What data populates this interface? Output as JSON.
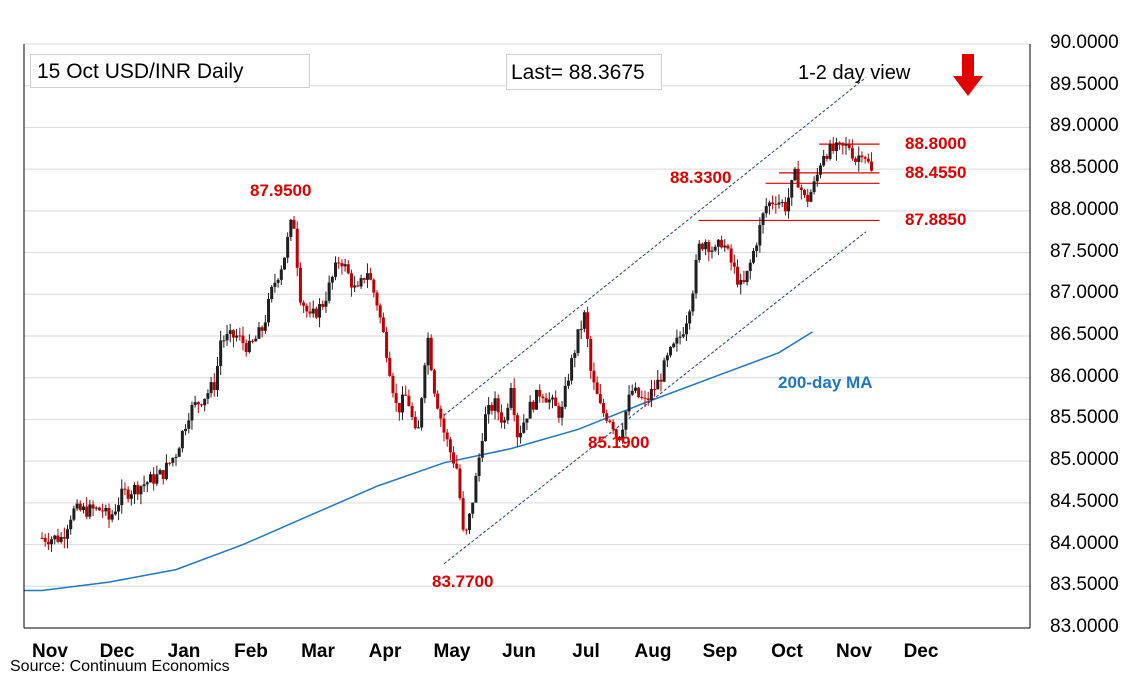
{
  "header": {
    "title": "15 Oct  USD/INR  Daily",
    "last": "Last= 88.3675",
    "view": "1-2 day view",
    "view_arrow": "down-arrow-red"
  },
  "source": "Source: Continuum Economics",
  "colors": {
    "up_candle": "#1f1f1f",
    "down_candle": "#c00000",
    "ma_line": "#1f77c4",
    "level_lines": "#e00000",
    "channel_lines": "#1f3f7f",
    "arrow": "#e00000"
  },
  "chart_data": {
    "type": "candlestick",
    "ylim": [
      83.0,
      90.0
    ],
    "y_ticks": [
      "83.0000",
      "83.5000",
      "84.0000",
      "84.5000",
      "85.0000",
      "85.5000",
      "86.0000",
      "86.5000",
      "87.0000",
      "87.5000",
      "88.0000",
      "88.5000",
      "89.0000",
      "89.5000",
      "90.0000"
    ],
    "x_ticks": [
      "Nov",
      "Dec",
      "Jan",
      "Feb",
      "Mar",
      "Apr",
      "May",
      "Jun",
      "Jul",
      "Aug",
      "Sep",
      "Oct",
      "Nov",
      "Dec"
    ],
    "grid": true,
    "levels": [
      {
        "label": "88.8000",
        "value": 88.8
      },
      {
        "label": "88.4550",
        "value": 88.455
      },
      {
        "label": "88.3300",
        "value": 88.33
      },
      {
        "label": "87.8850",
        "value": 87.885
      }
    ],
    "annotations": [
      {
        "label": "87.9500",
        "value": 87.95
      },
      {
        "label": "85.1900",
        "value": 85.19
      },
      {
        "label": "83.7700",
        "value": 83.77
      }
    ],
    "ma_label": "200-day MA",
    "moving_average_200d": [
      {
        "month": 0.0,
        "value": 83.45
      },
      {
        "month": 1.0,
        "value": 83.55
      },
      {
        "month": 2.0,
        "value": 83.7
      },
      {
        "month": 3.0,
        "value": 84.0
      },
      {
        "month": 4.0,
        "value": 84.35
      },
      {
        "month": 5.0,
        "value": 84.7
      },
      {
        "month": 6.0,
        "value": 84.98
      },
      {
        "month": 7.0,
        "value": 85.15
      },
      {
        "month": 8.0,
        "value": 85.38
      },
      {
        "month": 9.0,
        "value": 85.7
      },
      {
        "month": 10.0,
        "value": 86.0
      },
      {
        "month": 11.0,
        "value": 86.3
      },
      {
        "month": 11.5,
        "value": 86.55
      }
    ],
    "channel": [
      {
        "from": {
          "month": 6.0,
          "value": 85.55
        },
        "to": {
          "month": 12.3,
          "value": 89.6
        }
      },
      {
        "from": {
          "month": 6.0,
          "value": 83.77
        },
        "to": {
          "month": 12.3,
          "value": 87.75
        }
      }
    ],
    "price_path": [
      {
        "month": 0.0,
        "value": 84.08
      },
      {
        "month": 0.3,
        "value": 84.08
      },
      {
        "month": 0.45,
        "value": 84.4
      },
      {
        "month": 0.9,
        "value": 84.42
      },
      {
        "month": 1.0,
        "value": 84.3
      },
      {
        "month": 1.2,
        "value": 84.6
      },
      {
        "month": 1.5,
        "value": 84.72
      },
      {
        "month": 1.8,
        "value": 84.85
      },
      {
        "month": 2.0,
        "value": 85.1
      },
      {
        "month": 2.2,
        "value": 85.6
      },
      {
        "month": 2.45,
        "value": 85.8
      },
      {
        "month": 2.6,
        "value": 85.95
      },
      {
        "month": 2.65,
        "value": 86.45
      },
      {
        "month": 2.9,
        "value": 86.5
      },
      {
        "month": 3.1,
        "value": 86.35
      },
      {
        "month": 3.3,
        "value": 86.6
      },
      {
        "month": 3.45,
        "value": 87.1
      },
      {
        "month": 3.6,
        "value": 87.4
      },
      {
        "month": 3.75,
        "value": 87.95
      },
      {
        "month": 3.85,
        "value": 87.0
      },
      {
        "month": 4.0,
        "value": 86.7
      },
      {
        "month": 4.2,
        "value": 86.9
      },
      {
        "month": 4.45,
        "value": 87.45
      },
      {
        "month": 4.7,
        "value": 87.0
      },
      {
        "month": 4.85,
        "value": 87.3
      },
      {
        "month": 5.0,
        "value": 86.9
      },
      {
        "month": 5.15,
        "value": 86.3
      },
      {
        "month": 5.3,
        "value": 85.6
      },
      {
        "month": 5.45,
        "value": 85.8
      },
      {
        "month": 5.6,
        "value": 85.2
      },
      {
        "month": 5.7,
        "value": 86.1
      },
      {
        "month": 5.75,
        "value": 86.55
      },
      {
        "month": 5.85,
        "value": 85.9
      },
      {
        "month": 6.0,
        "value": 85.35
      },
      {
        "month": 6.1,
        "value": 85.1
      },
      {
        "month": 6.2,
        "value": 84.9
      },
      {
        "month": 6.3,
        "value": 84.0
      },
      {
        "month": 6.4,
        "value": 84.4
      },
      {
        "month": 6.5,
        "value": 84.9
      },
      {
        "month": 6.6,
        "value": 85.5
      },
      {
        "month": 6.75,
        "value": 85.7
      },
      {
        "month": 6.9,
        "value": 85.45
      },
      {
        "month": 7.0,
        "value": 85.95
      },
      {
        "month": 7.1,
        "value": 85.3
      },
      {
        "month": 7.25,
        "value": 85.6
      },
      {
        "month": 7.45,
        "value": 85.85
      },
      {
        "month": 7.6,
        "value": 85.7
      },
      {
        "month": 7.75,
        "value": 85.55
      },
      {
        "month": 7.85,
        "value": 86.0
      },
      {
        "month": 8.0,
        "value": 86.5
      },
      {
        "month": 8.1,
        "value": 86.75
      },
      {
        "month": 8.2,
        "value": 86.0
      },
      {
        "month": 8.35,
        "value": 85.6
      },
      {
        "month": 8.5,
        "value": 85.5
      },
      {
        "month": 8.6,
        "value": 85.25
      },
      {
        "month": 8.7,
        "value": 85.55
      },
      {
        "month": 8.8,
        "value": 85.85
      },
      {
        "month": 9.0,
        "value": 85.7
      },
      {
        "month": 9.2,
        "value": 85.95
      },
      {
        "month": 9.35,
        "value": 86.25
      },
      {
        "month": 9.5,
        "value": 86.45
      },
      {
        "month": 9.6,
        "value": 86.65
      },
      {
        "month": 9.7,
        "value": 87.0
      },
      {
        "month": 9.8,
        "value": 87.55
      },
      {
        "month": 9.9,
        "value": 87.65
      },
      {
        "month": 10.05,
        "value": 87.5
      },
      {
        "month": 10.15,
        "value": 87.65
      },
      {
        "month": 10.3,
        "value": 87.35
      },
      {
        "month": 10.45,
        "value": 87.05
      },
      {
        "month": 10.55,
        "value": 87.3
      },
      {
        "month": 10.65,
        "value": 87.6
      },
      {
        "month": 10.8,
        "value": 88.05
      },
      {
        "month": 10.95,
        "value": 88.15
      },
      {
        "month": 11.1,
        "value": 88.05
      },
      {
        "month": 11.25,
        "value": 88.45
      },
      {
        "month": 11.4,
        "value": 88.1
      },
      {
        "month": 11.55,
        "value": 88.35
      },
      {
        "month": 11.65,
        "value": 88.7
      },
      {
        "month": 11.8,
        "value": 88.72
      },
      {
        "month": 11.95,
        "value": 88.75
      },
      {
        "month": 12.05,
        "value": 88.78
      },
      {
        "month": 12.15,
        "value": 88.6
      },
      {
        "month": 12.25,
        "value": 88.75
      },
      {
        "month": 12.42,
        "value": 88.3675
      }
    ]
  }
}
